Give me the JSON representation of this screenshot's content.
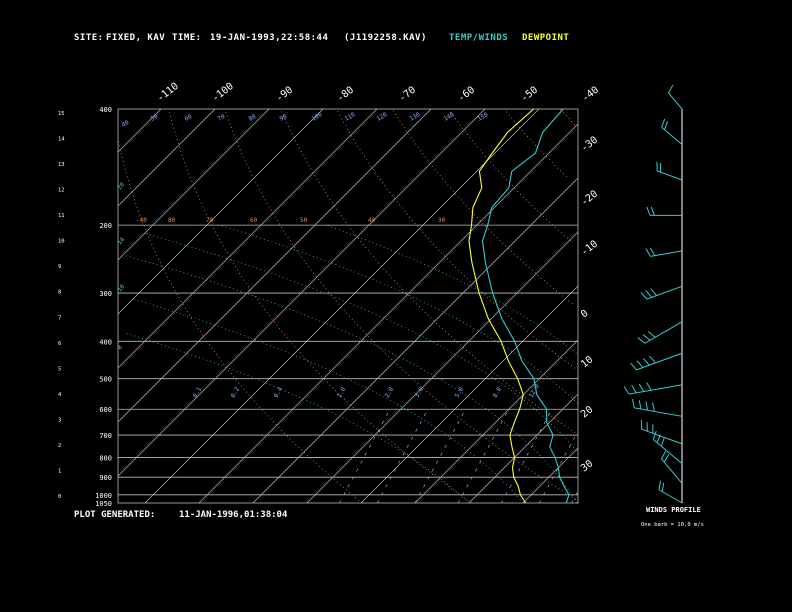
{
  "header": {
    "site_label": "SITE:",
    "site_value": "FIXED, KAV",
    "time_label": "TIME:",
    "time_value": "19-JAN-1993,22:58:44",
    "file_id": "(J1192258.KAV)",
    "legend_temp_winds": "TEMP/WINDS",
    "legend_dewpoint": "DEWPOINT"
  },
  "footer": {
    "plot_generated_label": "PLOT GENERATED:",
    "plot_generated_value": "11-JAN-1996,01:38:04"
  },
  "winds_panel": {
    "title": "WINDS PROFILE",
    "note": "One barb = 10.0 m/s"
  },
  "colors": {
    "background": "#000000",
    "temperature": "#33cccc",
    "dewpoint": "#ffff33",
    "isotherm_isobar": "#bbbbbb",
    "dry_adiabat": "#e08a50",
    "moist_adiabat": "#4fc7c7",
    "mixing_ratio": "#8fb0ff",
    "wind_barb": "#33cccc"
  },
  "chart_data": {
    "type": "line",
    "chart_kind": "skew-t log-p diagram",
    "pressure_levels_hpa": [
      "400",
      "200",
      "300",
      "400",
      "500",
      "600",
      "700",
      "800",
      "900",
      "1000",
      "1050"
    ],
    "height_labels_km": [
      "15",
      "14",
      "13",
      "12",
      "11",
      "10",
      "9",
      "8",
      "7",
      "6",
      "5",
      "4",
      "3",
      "2",
      "1",
      "0"
    ],
    "isotherm_labels_top": [
      "-110",
      "-100",
      "-90",
      "-80",
      "-70",
      "-60",
      "-50",
      "-40"
    ],
    "isotherm_labels_right": [
      "-30",
      "-20",
      "-10",
      "0",
      "10",
      "20",
      "30"
    ],
    "dry_adiabat_labels": [
      "-40",
      "80",
      "70",
      "60",
      "50",
      "40",
      "30"
    ],
    "theta_labels": [
      "40",
      "50",
      "60",
      "70",
      "80",
      "90",
      "100",
      "110",
      "120",
      "130",
      "140",
      "150"
    ],
    "mixing_ratio_labels": [
      "0.1",
      "0.2",
      "0.4",
      "1.0",
      "2.0",
      "3.0",
      "5.0",
      "8.0",
      "12.0"
    ],
    "moist_adiabat_labels": [
      "20",
      "14",
      "10",
      "8"
    ],
    "series": [
      {
        "name": "TEMP/WINDS",
        "points": [
          {
            "p": 1050,
            "t": 8.0
          },
          {
            "p": 1000,
            "t": 7.0
          },
          {
            "p": 950,
            "t": 4.5
          },
          {
            "p": 900,
            "t": 2.0
          },
          {
            "p": 850,
            "t": 0.0
          },
          {
            "p": 800,
            "t": -2.5
          },
          {
            "p": 750,
            "t": -5.5
          },
          {
            "p": 700,
            "t": -7.0
          },
          {
            "p": 650,
            "t": -10.5
          },
          {
            "p": 600,
            "t": -13.0
          },
          {
            "p": 550,
            "t": -17.5
          },
          {
            "p": 500,
            "t": -21.0
          },
          {
            "p": 450,
            "t": -26.5
          },
          {
            "p": 400,
            "t": -31.5
          },
          {
            "p": 350,
            "t": -38.0
          },
          {
            "p": 300,
            "t": -44.5
          },
          {
            "p": 250,
            "t": -51.5
          },
          {
            "p": 220,
            "t": -56.0
          },
          {
            "p": 200,
            "t": -58.0
          },
          {
            "p": 180,
            "t": -60.5
          },
          {
            "p": 160,
            "t": -61.0
          },
          {
            "p": 145,
            "t": -63.5
          },
          {
            "p": 130,
            "t": -62.5
          },
          {
            "p": 115,
            "t": -65.0
          },
          {
            "p": 100,
            "t": -65.5
          }
        ]
      },
      {
        "name": "DEWPOINT",
        "points": [
          {
            "p": 1050,
            "t": 0.5
          },
          {
            "p": 1000,
            "t": -2.0
          },
          {
            "p": 950,
            "t": -4.0
          },
          {
            "p": 900,
            "t": -6.5
          },
          {
            "p": 850,
            "t": -8.5
          },
          {
            "p": 800,
            "t": -10.0
          },
          {
            "p": 750,
            "t": -12.5
          },
          {
            "p": 700,
            "t": -15.0
          },
          {
            "p": 650,
            "t": -16.5
          },
          {
            "p": 600,
            "t": -18.0
          },
          {
            "p": 550,
            "t": -20.0
          },
          {
            "p": 500,
            "t": -24.0
          },
          {
            "p": 450,
            "t": -29.0
          },
          {
            "p": 400,
            "t": -34.0
          },
          {
            "p": 350,
            "t": -40.5
          },
          {
            "p": 300,
            "t": -47.0
          },
          {
            "p": 250,
            "t": -54.0
          },
          {
            "p": 220,
            "t": -58.5
          },
          {
            "p": 200,
            "t": -61.0
          },
          {
            "p": 180,
            "t": -64.0
          },
          {
            "p": 160,
            "t": -66.0
          },
          {
            "p": 145,
            "t": -69.5
          },
          {
            "p": 130,
            "t": -70.5
          },
          {
            "p": 115,
            "t": -71.5
          },
          {
            "p": 100,
            "t": -71.0
          }
        ]
      }
    ],
    "wind_profile": {
      "note": "barb segments drawn per level; values approximate, speed in m/s",
      "levels": [
        {
          "h": 0.0,
          "dir": 300,
          "spd": 15
        },
        {
          "h": 0.05,
          "dir": 320,
          "spd": 20
        },
        {
          "h": 0.1,
          "dir": 310,
          "spd": 25
        },
        {
          "h": 0.15,
          "dir": 290,
          "spd": 30
        },
        {
          "h": 0.22,
          "dir": 280,
          "spd": 35
        },
        {
          "h": 0.3,
          "dir": 260,
          "spd": 40
        },
        {
          "h": 0.38,
          "dir": 250,
          "spd": 35
        },
        {
          "h": 0.46,
          "dir": 240,
          "spd": 30
        },
        {
          "h": 0.55,
          "dir": 250,
          "spd": 25
        },
        {
          "h": 0.64,
          "dir": 260,
          "spd": 20
        },
        {
          "h": 0.73,
          "dir": 270,
          "spd": 20
        },
        {
          "h": 0.82,
          "dir": 290,
          "spd": 15
        },
        {
          "h": 0.91,
          "dir": 310,
          "spd": 15
        },
        {
          "h": 1.0,
          "dir": 320,
          "spd": 10
        }
      ]
    }
  }
}
